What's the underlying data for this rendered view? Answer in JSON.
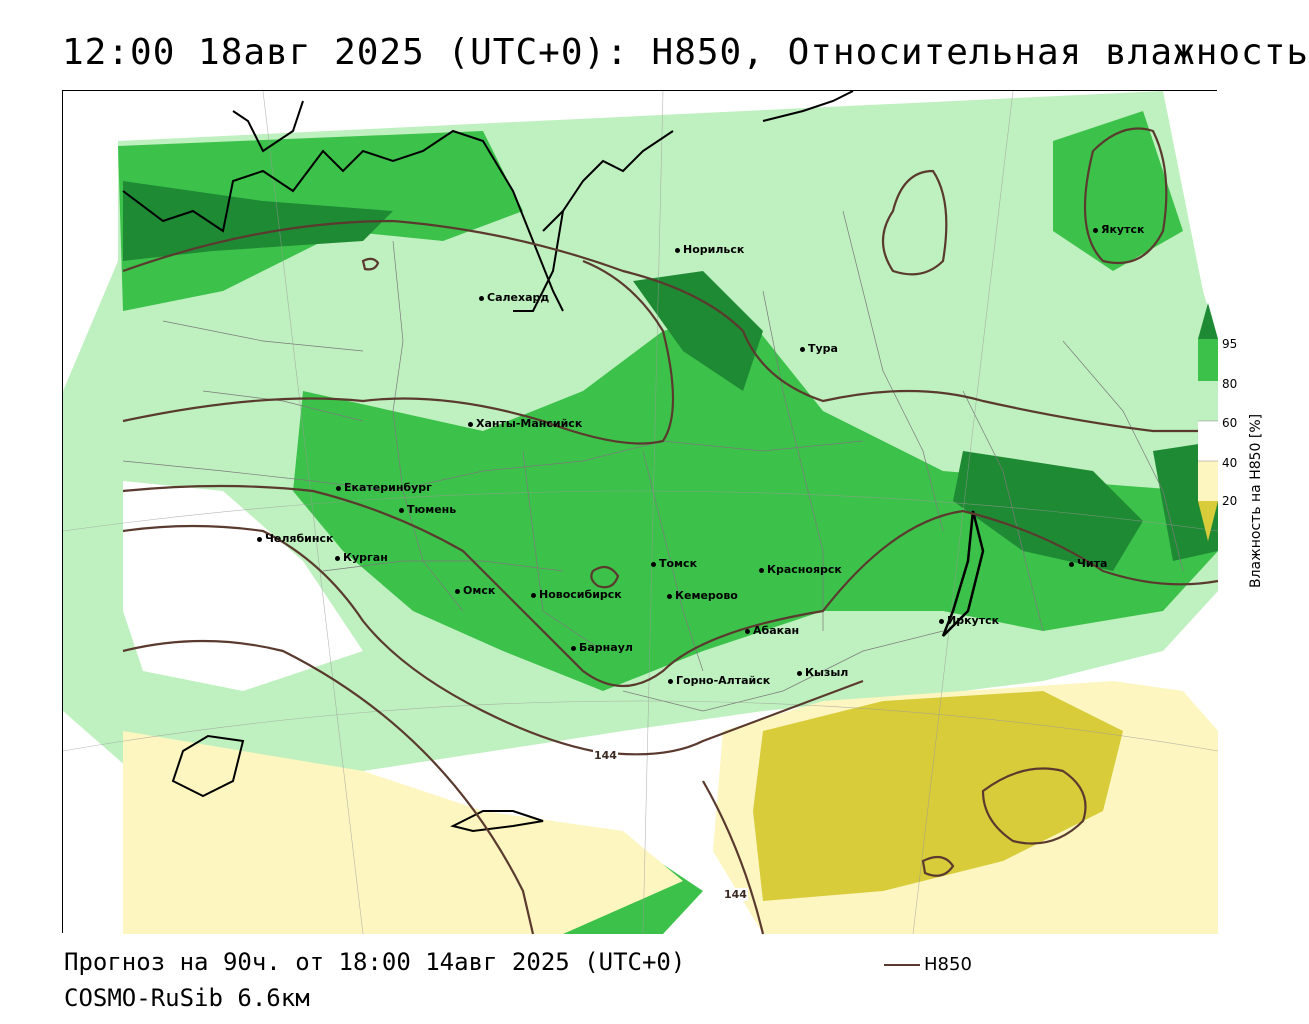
{
  "header": {
    "title": "12:00 18авг 2025 (UTC+0): H850, Относительная влажность"
  },
  "footer": {
    "forecast": "Прогноз на 90ч. от 18:00 14авг 2025 (UTC+0)",
    "model": "COSMO-RuSib 6.6км"
  },
  "legend": {
    "line_label": "H850",
    "line_color": "#5a3a2e",
    "colorbar_title": "Влажность на H850 [%]",
    "ticks": [
      "95",
      "80",
      "60",
      "40",
      "20"
    ],
    "colors": {
      "c95": "#1f8a34",
      "c80": "#3cc24a",
      "c60": "#bff0bf",
      "c40": "#ffffff",
      "c20": "#fdf6c0",
      "c10": "#d8cc3a"
    }
  },
  "map": {
    "contour_labels": [
      "144",
      "144"
    ],
    "cities": [
      {
        "name": "Якутск"
      },
      {
        "name": "Норильск"
      },
      {
        "name": "Салехард"
      },
      {
        "name": "Тура"
      },
      {
        "name": "Ханты-Мансийск"
      },
      {
        "name": "Екатеринбург"
      },
      {
        "name": "Тюмень"
      },
      {
        "name": "Челябинск"
      },
      {
        "name": "Курган"
      },
      {
        "name": "Омск"
      },
      {
        "name": "Томск"
      },
      {
        "name": "Новосибирск"
      },
      {
        "name": "Кемерово"
      },
      {
        "name": "Красноярск"
      },
      {
        "name": "Барнаул"
      },
      {
        "name": "Абакан"
      },
      {
        "name": "Горно-Алтайск"
      },
      {
        "name": "Кызыл"
      },
      {
        "name": "Иркутск"
      },
      {
        "name": "Чита"
      }
    ]
  }
}
